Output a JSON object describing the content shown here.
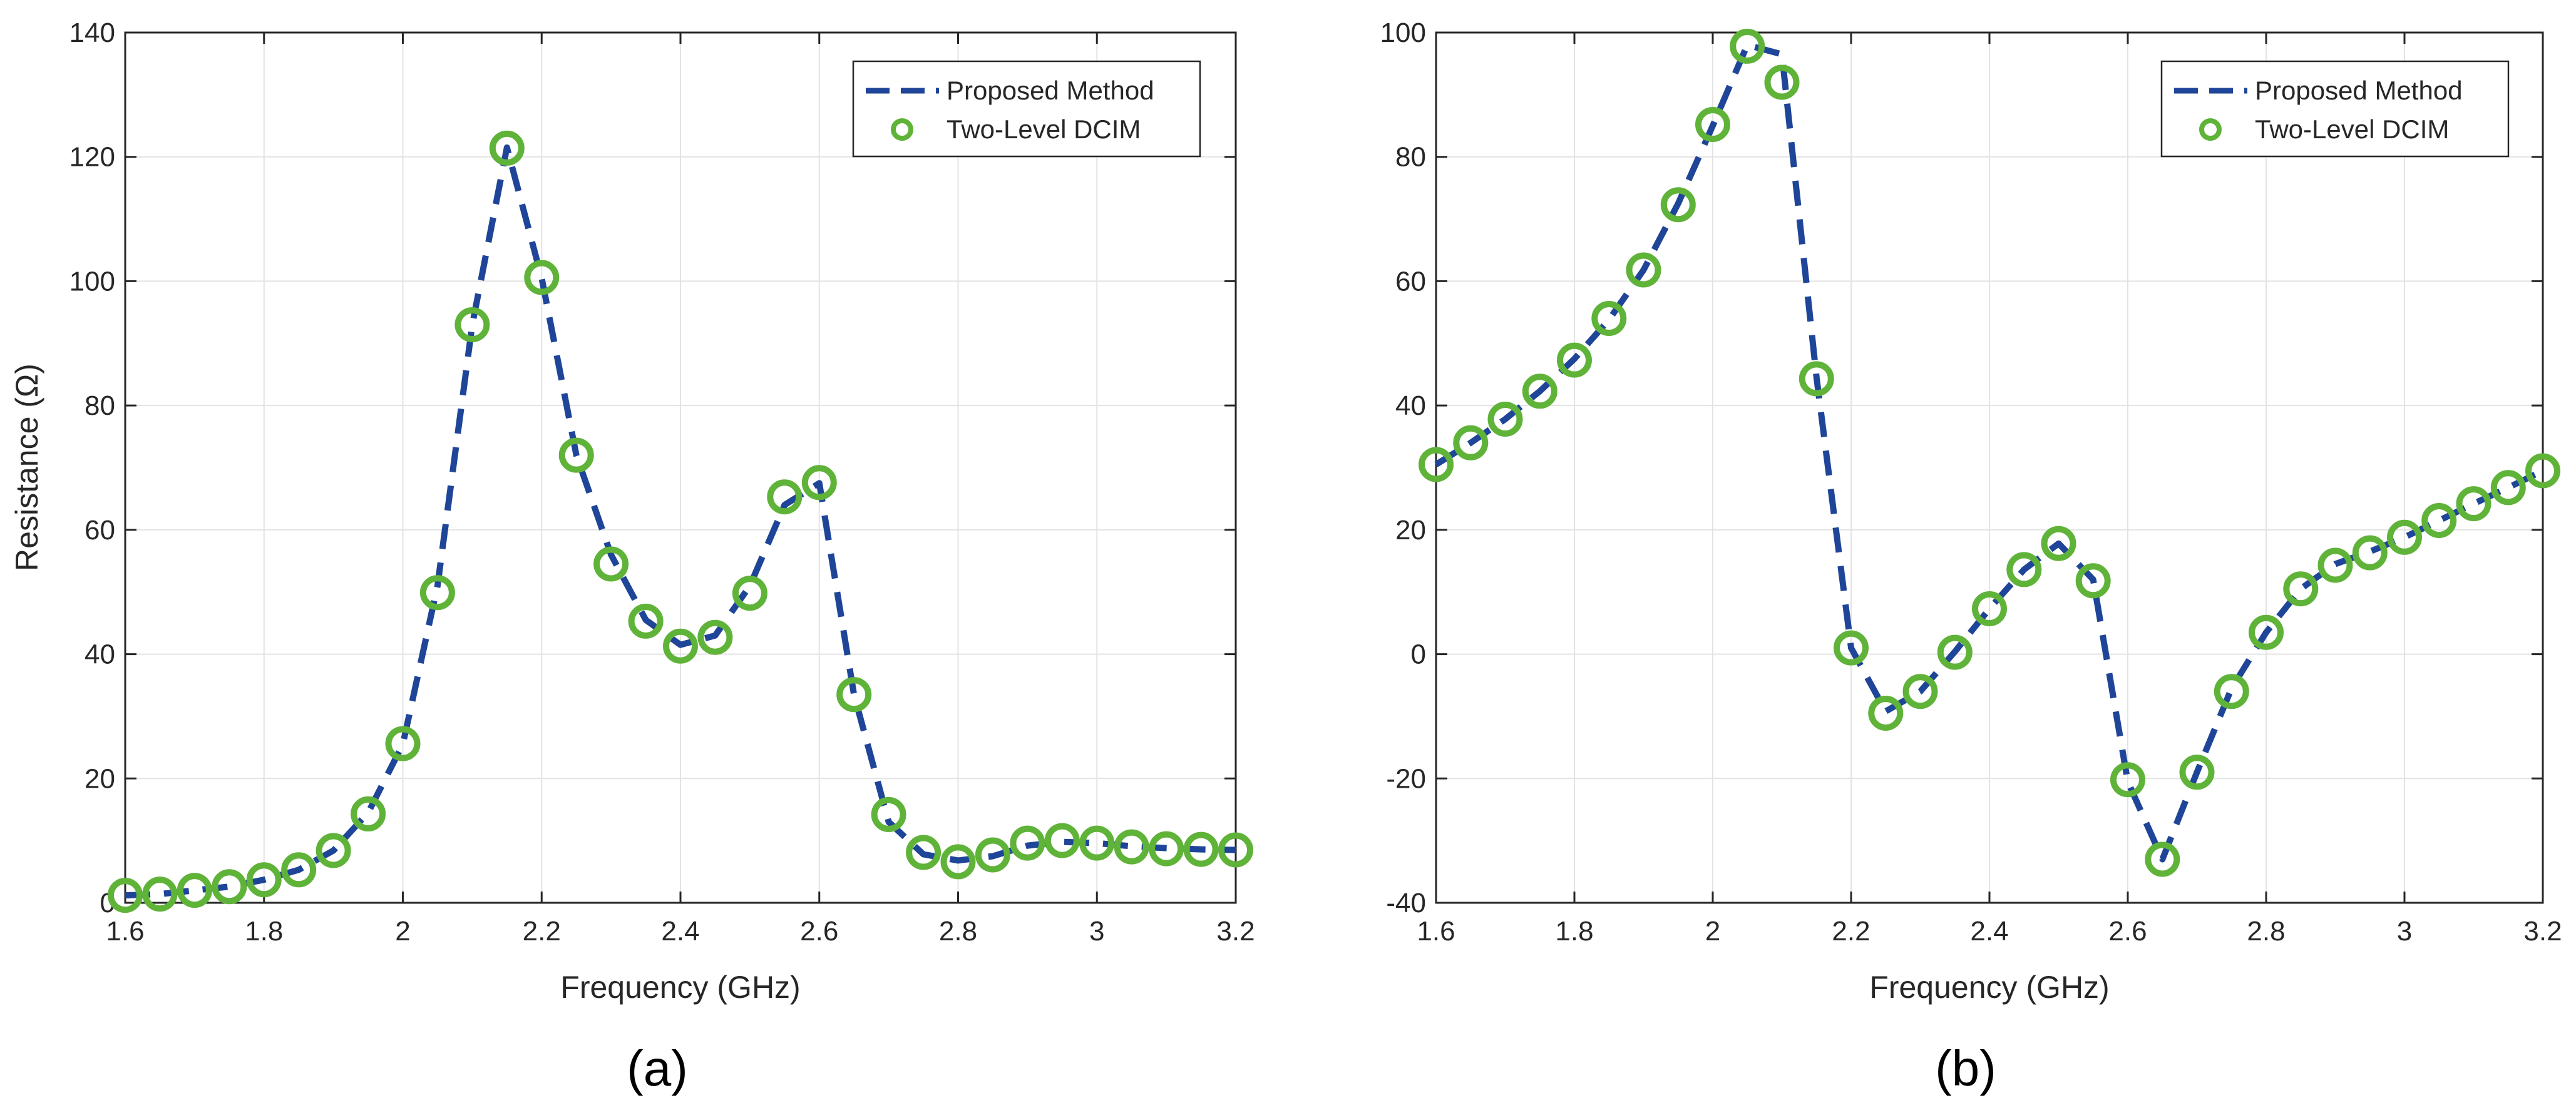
{
  "colors": {
    "proposed": "#1f4599",
    "dcim": "#5fb338",
    "grid": "#e3e3e3",
    "axis": "#262626"
  },
  "chart_data": [
    {
      "type": "line",
      "panel_label": "(a)",
      "xlabel": "Frequency (GHz)",
      "ylabel": "Resistance (Ω)",
      "xlim": [
        1.6,
        3.2
      ],
      "ylim": [
        0,
        140
      ],
      "xticks": [
        1.6,
        1.8,
        2,
        2.2,
        2.4,
        2.6,
        2.8,
        3,
        3.2
      ],
      "xtick_labels": [
        "1.6",
        "1.8",
        "2",
        "2.2",
        "2.4",
        "2.6",
        "2.8",
        "3",
        "3.2"
      ],
      "yticks": [
        0,
        20,
        40,
        60,
        80,
        100,
        120,
        140
      ],
      "ytick_labels": [
        "0",
        "20",
        "40",
        "60",
        "80",
        "100",
        "120",
        "140"
      ],
      "grid": true,
      "legend_position": "top-right",
      "series": [
        {
          "name": "Proposed Method",
          "style": "dashed-line",
          "x": [
            1.6,
            1.65,
            1.7,
            1.75,
            1.8,
            1.85,
            1.9,
            1.95,
            2.0,
            2.05,
            2.1,
            2.15,
            2.2,
            2.25,
            2.3,
            2.35,
            2.4,
            2.45,
            2.5,
            2.55,
            2.6,
            2.65,
            2.7,
            2.75,
            2.8,
            2.85,
            2.9,
            2.95,
            3.0,
            3.05,
            3.1,
            3.15,
            3.2
          ],
          "y": [
            1.2,
            1.4,
            2.0,
            2.6,
            3.7,
            5.3,
            8.4,
            14.5,
            25.5,
            51.0,
            93.0,
            121.5,
            100.5,
            72.0,
            56.0,
            45.5,
            41.5,
            43.0,
            51.0,
            64.0,
            67.5,
            33.5,
            13.0,
            7.8,
            6.8,
            7.5,
            9.2,
            9.8,
            9.6,
            9.1,
            8.8,
            8.6,
            8.5
          ]
        },
        {
          "name": "Two-Level DCIM",
          "style": "circle-markers",
          "x": [
            1.6,
            1.65,
            1.7,
            1.75,
            1.8,
            1.85,
            1.9,
            1.95,
            2.0,
            2.05,
            2.1,
            2.15,
            2.2,
            2.25,
            2.3,
            2.35,
            2.4,
            2.45,
            2.5,
            2.55,
            2.6,
            2.65,
            2.7,
            2.75,
            2.8,
            2.85,
            2.9,
            2.95,
            3.0,
            3.05,
            3.1,
            3.15,
            3.2
          ],
          "y": [
            1.2,
            1.4,
            2.0,
            2.6,
            3.7,
            5.3,
            8.4,
            14.3,
            25.6,
            49.9,
            93.0,
            121.4,
            100.6,
            72.0,
            54.5,
            45.3,
            41.3,
            42.7,
            49.8,
            65.3,
            67.6,
            33.5,
            14.2,
            8.1,
            6.6,
            7.7,
            9.6,
            10.0,
            9.6,
            9.0,
            8.7,
            8.6,
            8.5
          ]
        }
      ]
    },
    {
      "type": "line",
      "panel_label": "(b)",
      "xlabel": "Frequency (GHz)",
      "ylabel": "",
      "xlim": [
        1.6,
        3.2
      ],
      "ylim": [
        -40,
        100
      ],
      "xticks": [
        1.6,
        1.8,
        2,
        2.2,
        2.4,
        2.6,
        2.8,
        3,
        3.2
      ],
      "xtick_labels": [
        "1.6",
        "1.8",
        "2",
        "2.2",
        "2.4",
        "2.6",
        "2.8",
        "3",
        "3.2"
      ],
      "yticks": [
        -40,
        -20,
        0,
        20,
        40,
        60,
        80,
        100
      ],
      "ytick_labels": [
        "-40",
        "-20",
        "0",
        "20",
        "40",
        "60",
        "80",
        "100"
      ],
      "grid": true,
      "legend_position": "top-right",
      "series": [
        {
          "name": "Proposed Method",
          "style": "dashed-line",
          "x": [
            1.6,
            1.65,
            1.7,
            1.75,
            1.8,
            1.85,
            1.9,
            1.95,
            2.0,
            2.05,
            2.1,
            2.15,
            2.2,
            2.25,
            2.3,
            2.35,
            2.4,
            2.45,
            2.5,
            2.55,
            2.6,
            2.65,
            2.7,
            2.75,
            2.8,
            2.85,
            2.9,
            2.95,
            3.0,
            3.05,
            3.1,
            3.15,
            3.2
          ],
          "y": [
            30.5,
            34.0,
            37.8,
            42.3,
            47.5,
            53.8,
            61.8,
            72.5,
            85.0,
            98.0,
            96.5,
            44.5,
            1.0,
            -9.2,
            -6.0,
            0.4,
            7.3,
            13.6,
            17.8,
            12.0,
            -20.5,
            -33.0,
            -19.0,
            -5.5,
            3.5,
            10.5,
            14.5,
            16.5,
            18.8,
            21.5,
            24.2,
            26.8,
            29.5
          ]
        },
        {
          "name": "Two-Level DCIM",
          "style": "circle-markers",
          "x": [
            1.6,
            1.65,
            1.7,
            1.75,
            1.8,
            1.85,
            1.9,
            1.95,
            2.0,
            2.05,
            2.1,
            2.15,
            2.2,
            2.25,
            2.3,
            2.35,
            2.4,
            2.45,
            2.5,
            2.55,
            2.6,
            2.65,
            2.7,
            2.75,
            2.8,
            2.85,
            2.9,
            2.95,
            3.0,
            3.05,
            3.1,
            3.15,
            3.2
          ],
          "y": [
            30.5,
            34.0,
            37.8,
            42.3,
            47.3,
            54.0,
            61.8,
            72.3,
            85.2,
            97.8,
            92.0,
            44.3,
            1.0,
            -9.5,
            -6.0,
            0.3,
            7.3,
            13.6,
            17.8,
            11.8,
            -20.2,
            -33.0,
            -19.0,
            -6.0,
            3.5,
            10.5,
            14.3,
            16.3,
            18.8,
            21.5,
            24.2,
            26.8,
            29.5
          ]
        }
      ]
    }
  ]
}
